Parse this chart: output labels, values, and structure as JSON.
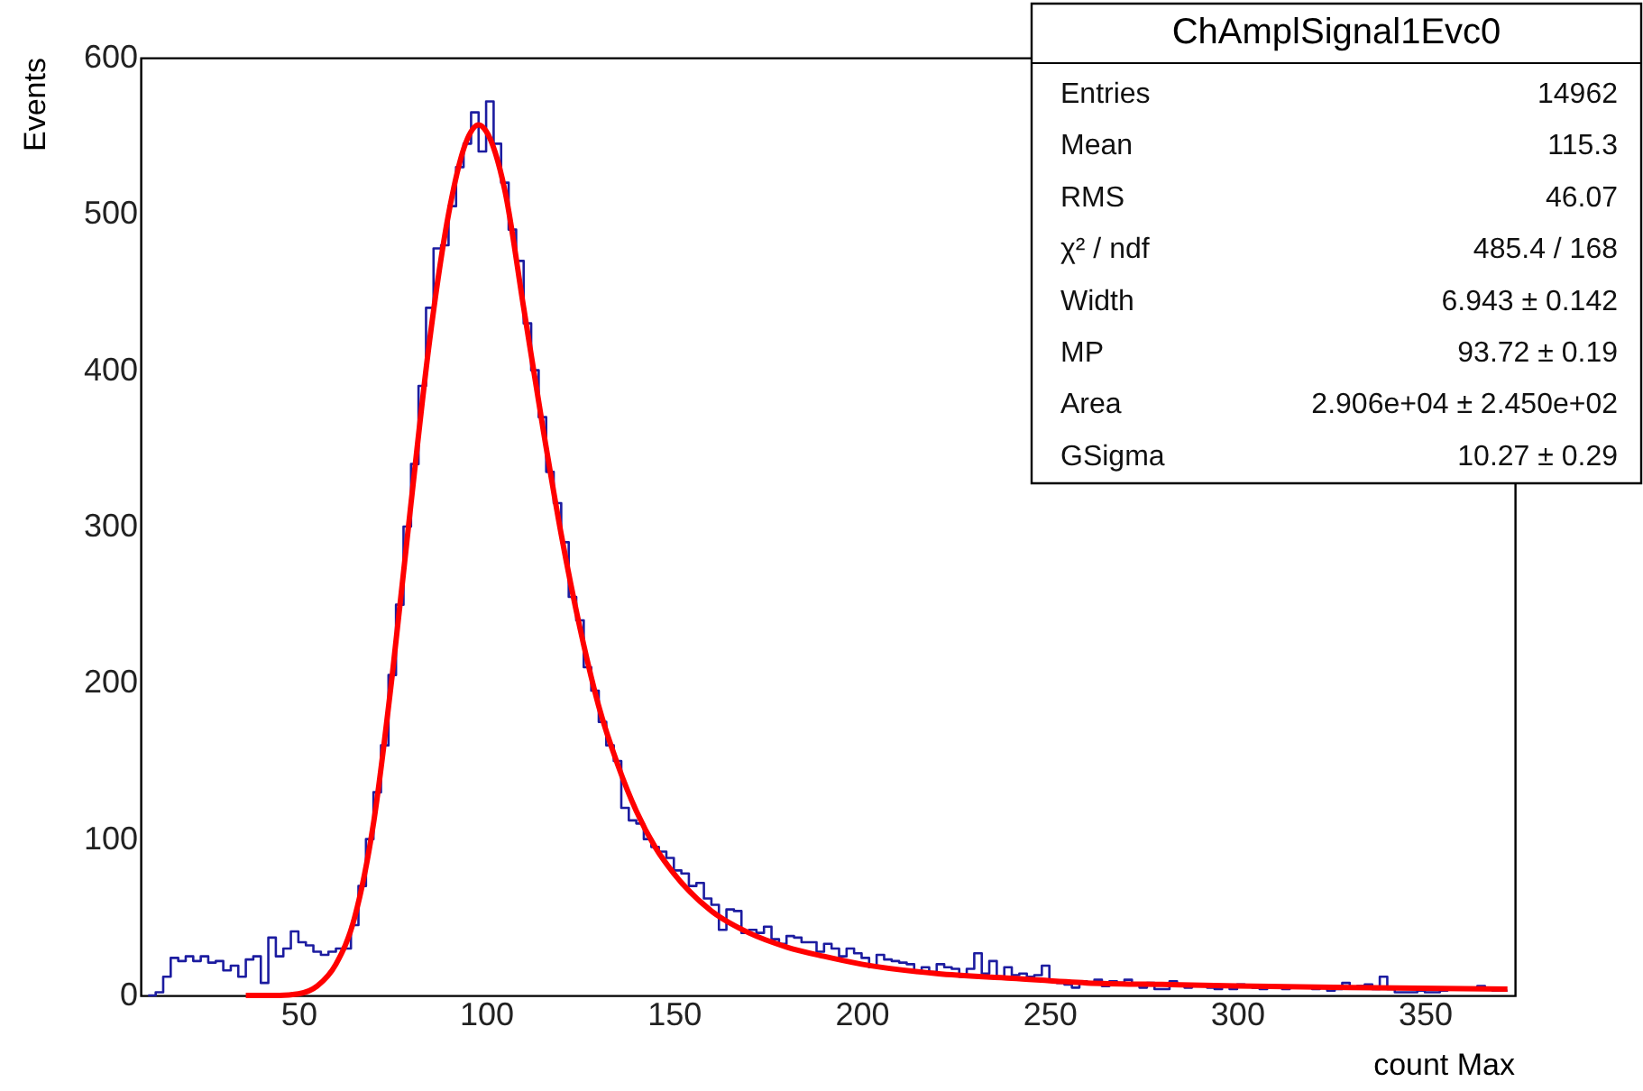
{
  "chart_data": {
    "type": "histogram",
    "title": "ChAmplSignal1Evc0",
    "xlabel": "count Max",
    "ylabel": "Events",
    "xlim": [
      8,
      374
    ],
    "ylim": [
      0,
      600
    ],
    "xticks": [
      50,
      100,
      150,
      200,
      250,
      300,
      350
    ],
    "yticks": [
      0,
      100,
      200,
      300,
      400,
      500,
      600
    ],
    "grid": false,
    "annotations": [
      "Entries",
      "14962",
      "Mean",
      "115.3",
      "RMS",
      "46.07",
      "χ² / ndf",
      "485.4 / 168",
      "Width",
      "6.943 ± 0.142",
      "MP",
      "93.72 ± 0.19",
      "Area",
      "2.906e+04 ± 2.450e+02",
      "GSigma",
      "10.27 ± 0.29"
    ],
    "bins": [
      10,
      12,
      14,
      16,
      18,
      20,
      22,
      24,
      26,
      28,
      30,
      32,
      34,
      36,
      38,
      40,
      42,
      44,
      46,
      48,
      50,
      52,
      54,
      56,
      58,
      60,
      62,
      64,
      66,
      68,
      70,
      72,
      74,
      76,
      78,
      80,
      82,
      84,
      86,
      88,
      90,
      92,
      94,
      96,
      98,
      100,
      102,
      104,
      106,
      108,
      110,
      112,
      114,
      116,
      118,
      120,
      122,
      124,
      126,
      128,
      130,
      132,
      134,
      136,
      138,
      140,
      142,
      144,
      146,
      148,
      150,
      152,
      154,
      156,
      158,
      160,
      162,
      164,
      166,
      168,
      170,
      172,
      174,
      176,
      178,
      180,
      182,
      184,
      186,
      188,
      190,
      192,
      194,
      196,
      198,
      200,
      202,
      204,
      206,
      208,
      210,
      212,
      214,
      216,
      218,
      220,
      222,
      224,
      226,
      228,
      230,
      232,
      234,
      236,
      238,
      240,
      242,
      244,
      246,
      248,
      250,
      252,
      254,
      256,
      258,
      260,
      262,
      264,
      266,
      268,
      270,
      272,
      274,
      276,
      278,
      280,
      282,
      284,
      286,
      288,
      290,
      292,
      294,
      296,
      298,
      300,
      302,
      304,
      306,
      308,
      310,
      312,
      314,
      316,
      318,
      320,
      322,
      324,
      326,
      328,
      330,
      332,
      334,
      336,
      338,
      340,
      342,
      344,
      346,
      348,
      350,
      352,
      354,
      356,
      358,
      360,
      362,
      364,
      366,
      368,
      370,
      372
    ],
    "series": [
      {
        "type": "histogram",
        "color": "#1c1ca0",
        "values": [
          0,
          2,
          12,
          24,
          22,
          25,
          22,
          25,
          21,
          22,
          16,
          19,
          12,
          23,
          25,
          8,
          37,
          25,
          30,
          41,
          34,
          32,
          28,
          26,
          28,
          30,
          30,
          45,
          70,
          100,
          130,
          160,
          205,
          250,
          300,
          340,
          390,
          440,
          478,
          480,
          505,
          530,
          545,
          565,
          540,
          572,
          545,
          520,
          490,
          470,
          430,
          400,
          370,
          335,
          315,
          290,
          255,
          240,
          210,
          195,
          175,
          160,
          150,
          120,
          112,
          110,
          100,
          95,
          92,
          88,
          80,
          78,
          70,
          72,
          62,
          58,
          42,
          55,
          54,
          40,
          42,
          40,
          44,
          36,
          33,
          38,
          37,
          34,
          34,
          28,
          33,
          30,
          25,
          30,
          27,
          24,
          18,
          26,
          23,
          22,
          21,
          20,
          16,
          18,
          15,
          20,
          18,
          17,
          12,
          17,
          27,
          14,
          22,
          12,
          18,
          13,
          14,
          12,
          13,
          19,
          9,
          8,
          7,
          5,
          9,
          8,
          10,
          6,
          9,
          8,
          10,
          7,
          5,
          8,
          4,
          4,
          9,
          6,
          5,
          6,
          7,
          5,
          4,
          6,
          4,
          7,
          6,
          5,
          4,
          5,
          6,
          4,
          6,
          5,
          5,
          4,
          6,
          3,
          4,
          8,
          5,
          6,
          7,
          4,
          12,
          4,
          2,
          2,
          2,
          3,
          2,
          2,
          3,
          5,
          5,
          4,
          5,
          6,
          4,
          3,
          3
        ]
      },
      {
        "type": "line",
        "color": "#ff0000",
        "x": [
          36,
          45,
          50,
          55,
          60,
          65,
          70,
          75,
          80,
          85,
          90,
          95,
          98,
          100,
          105,
          110,
          115,
          120,
          125,
          130,
          135,
          140,
          145,
          150,
          160,
          170,
          180,
          190,
          200,
          220,
          240,
          260,
          280,
          300,
          330,
          372
        ],
        "values": [
          0,
          0,
          1,
          6,
          20,
          50,
          110,
          205,
          315,
          420,
          500,
          548,
          557,
          553,
          515,
          440,
          365,
          295,
          235,
          185,
          148,
          118,
          95,
          78,
          54,
          40,
          31,
          25,
          20,
          14,
          11,
          8,
          7,
          6,
          5,
          4
        ]
      }
    ]
  }
}
